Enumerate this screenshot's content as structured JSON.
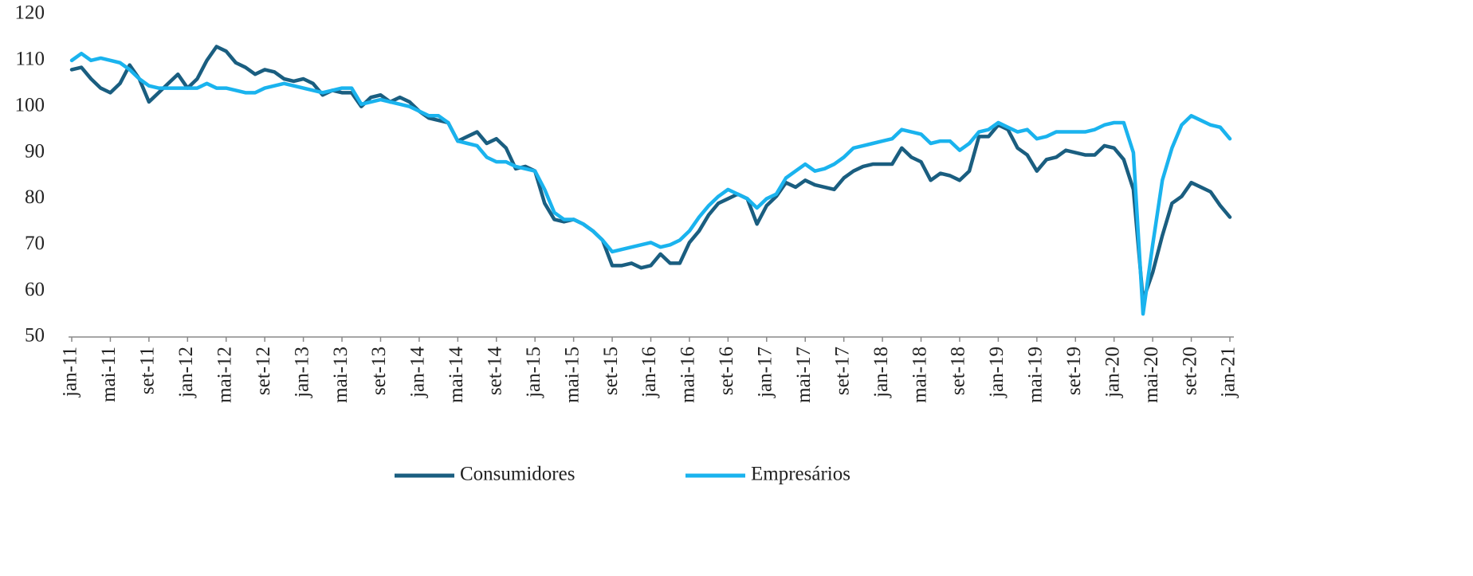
{
  "chart_data": {
    "type": "line",
    "categories": [
      "jan-11",
      null,
      null,
      null,
      "mai-11",
      null,
      null,
      null,
      "set-11",
      null,
      null,
      null,
      "jan-12",
      null,
      null,
      null,
      "mai-12",
      null,
      null,
      null,
      "set-12",
      null,
      null,
      null,
      "jan-13",
      null,
      null,
      null,
      "mai-13",
      null,
      null,
      null,
      "set-13",
      null,
      null,
      null,
      "jan-14",
      null,
      null,
      null,
      "mai-14",
      null,
      null,
      null,
      "set-14",
      null,
      null,
      null,
      "jan-15",
      null,
      null,
      null,
      "mai-15",
      null,
      null,
      null,
      "set-15",
      null,
      null,
      null,
      "jan-16",
      null,
      null,
      null,
      "mai-16",
      null,
      null,
      null,
      "set-16",
      null,
      null,
      null,
      "jan-17",
      null,
      null,
      null,
      "mai-17",
      null,
      null,
      null,
      "set-17",
      null,
      null,
      null,
      "jan-18",
      null,
      null,
      null,
      "mai-18",
      null,
      null,
      null,
      "set-18",
      null,
      null,
      null,
      "jan-19",
      null,
      null,
      null,
      "mai-19",
      null,
      null,
      null,
      "set-19",
      null,
      null,
      null,
      "jan-20",
      null,
      null,
      null,
      "mai-20",
      null,
      null,
      null,
      "set-20",
      null,
      null,
      null,
      "jan-21"
    ],
    "series": [
      {
        "name": "Consumidores",
        "color": "#1a5e80",
        "values": [
          108,
          108.5,
          106,
          104,
          103,
          105,
          109,
          106,
          101,
          103,
          105,
          107,
          104,
          106,
          110,
          113,
          112,
          109.5,
          108.5,
          107,
          108,
          107.5,
          106,
          105.5,
          106,
          105,
          102.5,
          103.5,
          103,
          103,
          100,
          102,
          102.5,
          101,
          102,
          101,
          99,
          97.5,
          97,
          96.5,
          92.5,
          93.5,
          94.5,
          92,
          93,
          91,
          86.5,
          87,
          86,
          79,
          75.5,
          75,
          75.5,
          74.5,
          73,
          71,
          65.5,
          65.5,
          66,
          65,
          65.5,
          68,
          66,
          66,
          70.5,
          73,
          76.5,
          79,
          80,
          81,
          80,
          74.5,
          78.5,
          80.5,
          83.5,
          82.5,
          84,
          83,
          82.5,
          82,
          84.5,
          86,
          87,
          87.5,
          87.5,
          87.5,
          91,
          89,
          88,
          84,
          85.5,
          85,
          84,
          86,
          93.5,
          93.5,
          96,
          95,
          91,
          89.5,
          86,
          88.5,
          89,
          90.5,
          90,
          89.5,
          89.5,
          91.5,
          91,
          88.5,
          82,
          58,
          64,
          72,
          79,
          80.5,
          83.5,
          82.5,
          81.5,
          78.5,
          76
        ]
      },
      {
        "name": "Empresários",
        "color": "#1ab3ee",
        "values": [
          110,
          111.5,
          110,
          110.5,
          110,
          109.5,
          108,
          106,
          104.5,
          104,
          104,
          104,
          104,
          104,
          105,
          104,
          104,
          103.5,
          103,
          103,
          104,
          104.5,
          105,
          104.5,
          104,
          103.5,
          103,
          103.5,
          104,
          104,
          100.5,
          101,
          101.5,
          101,
          100.5,
          100,
          99,
          98,
          98,
          96.5,
          92.5,
          92,
          91.5,
          89,
          88,
          88,
          87,
          86.5,
          86,
          82,
          77,
          75.5,
          75.5,
          74.5,
          73,
          71,
          68.5,
          69,
          69.5,
          70,
          70.5,
          69.5,
          70,
          71,
          73,
          76,
          78.5,
          80.5,
          82,
          81,
          80,
          78,
          80,
          81,
          84.5,
          86,
          87.5,
          86,
          86.5,
          87.5,
          89,
          91,
          91.5,
          92,
          92.5,
          93,
          95,
          94.5,
          94,
          92,
          92.5,
          92.5,
          90.5,
          92,
          94.5,
          95,
          96.5,
          95.5,
          94.5,
          95,
          93,
          93.5,
          94.5,
          94.5,
          94.5,
          94.5,
          95,
          96,
          96.5,
          96.5,
          90,
          55,
          70,
          84,
          91,
          96,
          98,
          97,
          96,
          95.5,
          93
        ]
      }
    ],
    "ylim": [
      50,
      120
    ],
    "yticks": [
      50,
      60,
      70,
      80,
      90,
      100,
      110,
      120
    ],
    "grid": false,
    "legend": "bottom"
  }
}
